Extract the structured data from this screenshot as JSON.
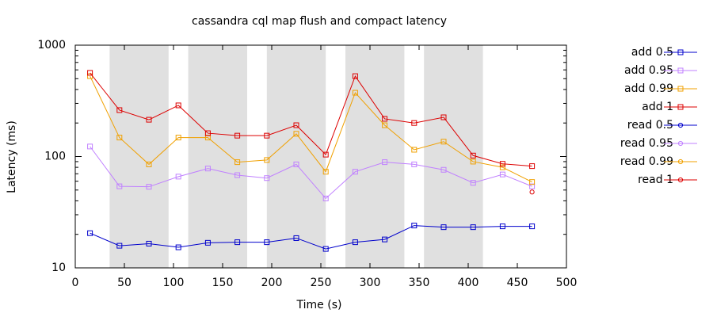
{
  "chart_data": {
    "type": "line",
    "title": "cassandra cql map flush and compact latency",
    "x_label": "Time (s)",
    "y_label": "Latency (ms)",
    "x": [
      15,
      45,
      75,
      105,
      135,
      165,
      195,
      225,
      255,
      285,
      315,
      345,
      375,
      405,
      435,
      465
    ],
    "xlim": [
      0,
      500
    ],
    "xticks": [
      0,
      50,
      100,
      150,
      200,
      250,
      300,
      350,
      400,
      450,
      500
    ],
    "ylim": [
      10,
      1000
    ],
    "yticks": [
      10,
      100,
      1000
    ],
    "yminorticks": [
      20,
      30,
      40,
      50,
      60,
      70,
      80,
      90,
      200,
      300,
      400,
      500,
      600,
      700,
      800,
      900
    ],
    "log_y": true,
    "legend": "right",
    "bands": [
      [
        35,
        95
      ],
      [
        115,
        175
      ],
      [
        195,
        255
      ],
      [
        275,
        335
      ],
      [
        355,
        415
      ]
    ],
    "band_color": "#e0e0e0",
    "series": [
      {
        "name": "add 0.5",
        "color": "#0000cc",
        "marker": "square",
        "values": [
          20.5,
          15.8,
          16.5,
          15.3,
          16.8,
          17,
          17,
          18.5,
          14.8,
          17,
          18,
          24,
          23.2,
          23.2,
          23.6,
          23.6
        ]
      },
      {
        "name": "add 0.95",
        "color": "#c080ff",
        "marker": "square",
        "values": [
          123,
          54,
          53.5,
          66,
          78,
          68,
          64,
          85,
          42,
          73,
          89,
          85,
          76,
          58,
          69,
          54
        ]
      },
      {
        "name": "add 0.99",
        "color": "#f0a000",
        "marker": "square",
        "values": [
          527,
          148,
          85,
          148,
          148,
          89,
          93,
          160,
          73,
          374,
          191,
          115,
          136,
          90,
          80,
          59
        ]
      },
      {
        "name": "add 1",
        "color": "#dd0000",
        "marker": "square",
        "values": [
          564,
          261,
          214,
          288,
          162,
          154,
          154,
          191,
          104,
          527,
          218,
          200,
          225,
          102,
          86,
          82
        ]
      },
      {
        "name": "read 0.5",
        "color": "#0000cc",
        "marker": "circle",
        "values": [
          null,
          null,
          null,
          null,
          null,
          null,
          null,
          null,
          null,
          null,
          null,
          null,
          null,
          null,
          null,
          null
        ]
      },
      {
        "name": "read 0.95",
        "color": "#c080ff",
        "marker": "circle",
        "values": [
          null,
          null,
          null,
          null,
          null,
          null,
          null,
          null,
          null,
          null,
          null,
          null,
          null,
          null,
          null,
          null
        ]
      },
      {
        "name": "read 0.99",
        "color": "#f0a000",
        "marker": "circle",
        "values": [
          null,
          null,
          null,
          null,
          null,
          null,
          null,
          null,
          null,
          null,
          null,
          null,
          null,
          null,
          null,
          null
        ]
      },
      {
        "name": "read 1",
        "color": "#dd0000",
        "marker": "circle",
        "values": [
          null,
          null,
          null,
          null,
          null,
          null,
          null,
          null,
          null,
          null,
          null,
          null,
          null,
          null,
          null,
          48
        ]
      }
    ]
  }
}
